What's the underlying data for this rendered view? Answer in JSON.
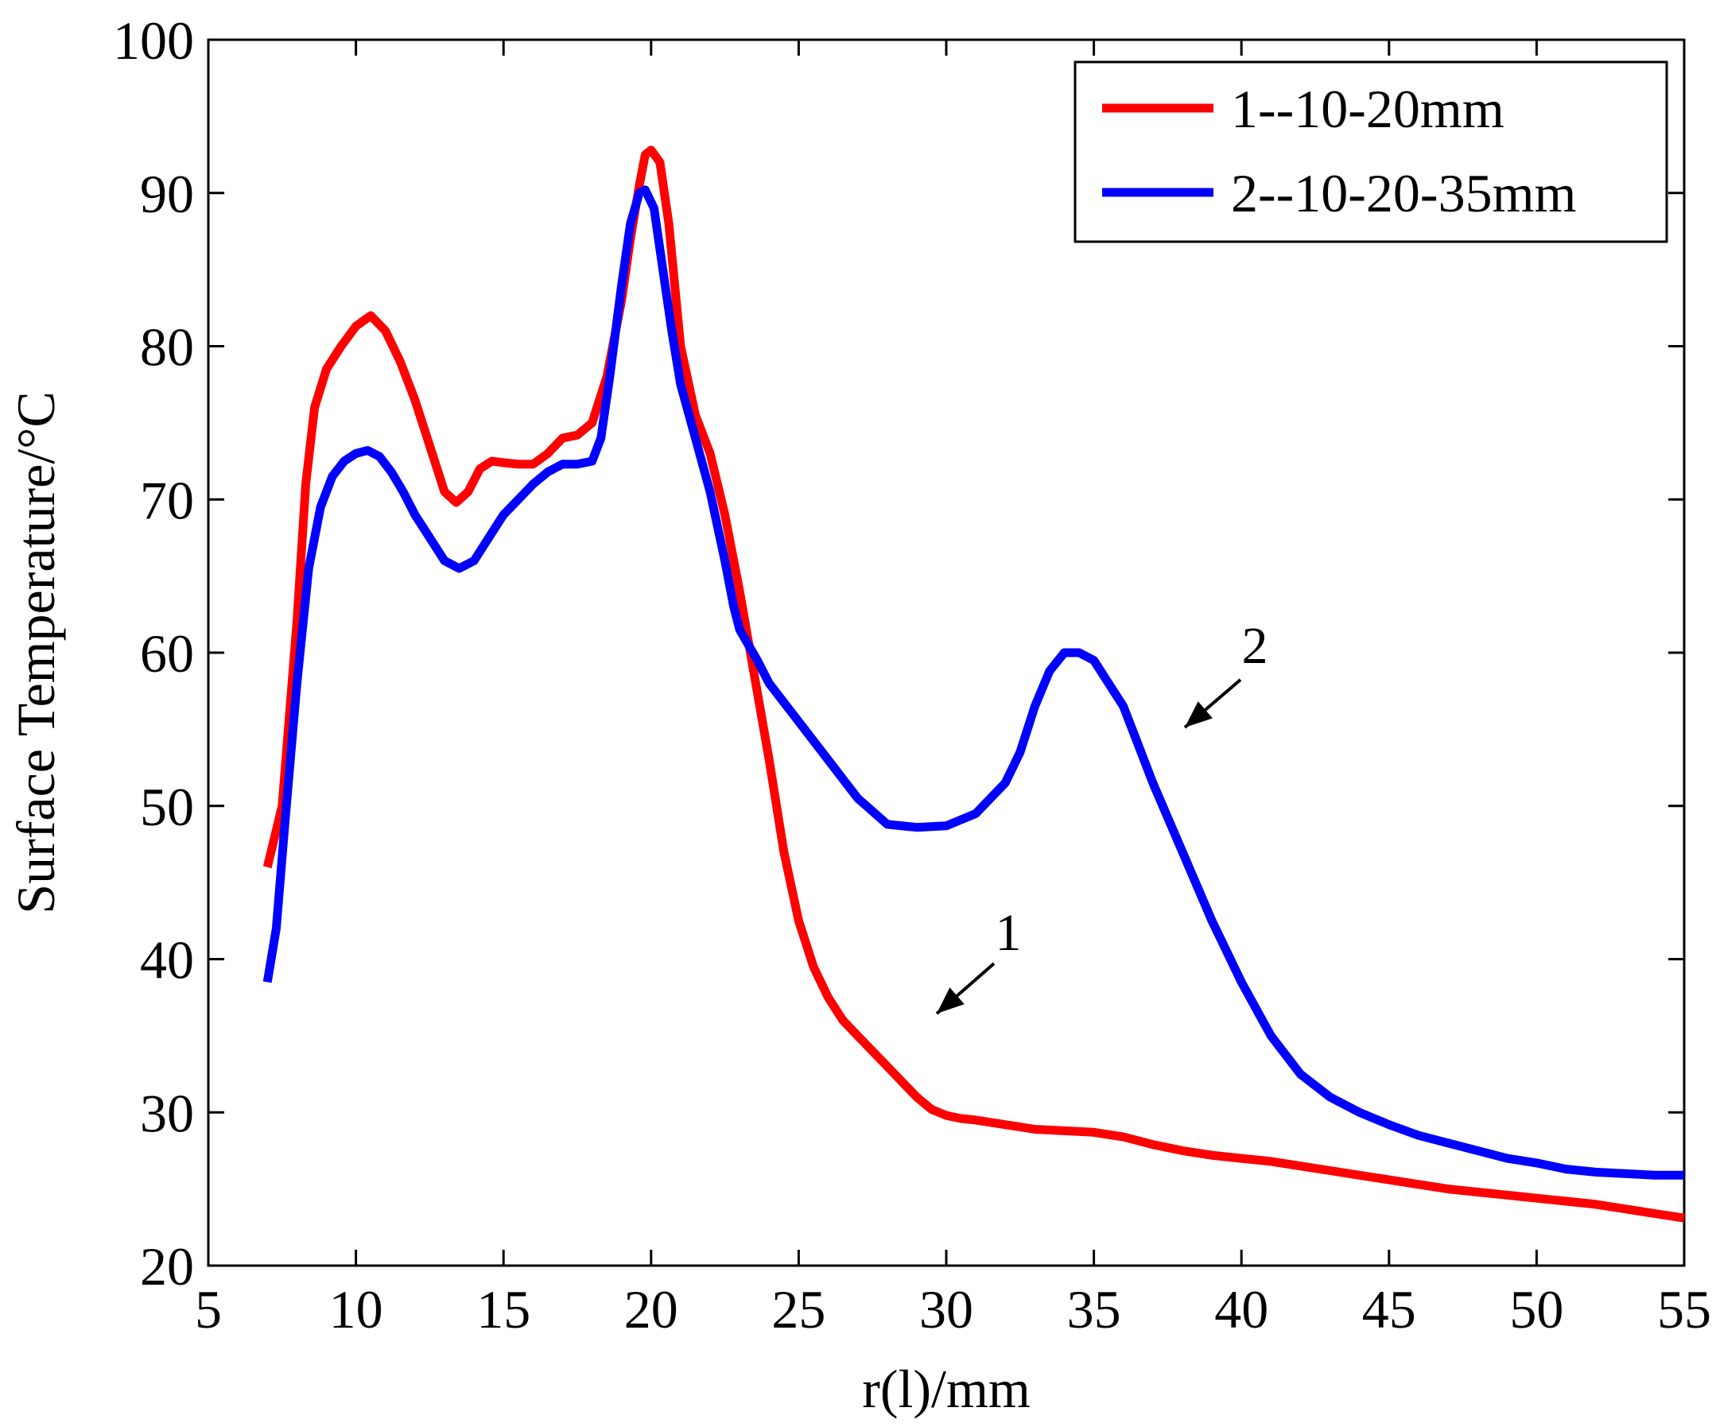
{
  "chart_data": {
    "type": "line",
    "title": "",
    "xlabel": "r(l)/mm",
    "ylabel": "Surface Temperature/°C",
    "xlim": [
      5,
      55
    ],
    "ylim": [
      20,
      100
    ],
    "xticks": [
      5,
      10,
      15,
      20,
      25,
      30,
      35,
      40,
      45,
      50,
      55
    ],
    "yticks": [
      20,
      30,
      40,
      50,
      60,
      70,
      80,
      90,
      100
    ],
    "grid": false,
    "legend_position": "top-right",
    "series": [
      {
        "name": "1--10-20mm",
        "color": "#ff0000",
        "x": [
          7.0,
          7.5,
          8.0,
          8.3,
          8.6,
          9.0,
          9.5,
          10.0,
          10.5,
          11.0,
          11.5,
          12.0,
          12.5,
          13.0,
          13.4,
          13.8,
          14.2,
          14.6,
          15.0,
          15.5,
          16.0,
          16.5,
          17.0,
          17.5,
          18.0,
          18.5,
          19.0,
          19.3,
          19.6,
          19.8,
          20.0,
          20.3,
          20.6,
          21.0,
          21.5,
          22.0,
          22.5,
          23.0,
          23.5,
          24.0,
          24.5,
          25.0,
          25.5,
          26.0,
          26.5,
          27.0,
          27.5,
          28.0,
          28.5,
          29.0,
          29.5,
          30.0,
          30.5,
          31.0,
          32.0,
          33.0,
          34.0,
          35.0,
          36.0,
          37.0,
          38.0,
          39.0,
          40.0,
          41.0,
          42.0,
          43.0,
          44.0,
          45.0,
          46.0,
          47.0,
          48.0,
          49.0,
          50.0,
          51.0,
          52.0,
          53.0,
          54.0,
          55.0
        ],
        "values": [
          46.0,
          50.0,
          62.0,
          71.0,
          76.0,
          78.5,
          80.0,
          81.3,
          82.0,
          81.0,
          79.0,
          76.5,
          73.5,
          70.5,
          69.8,
          70.5,
          72.0,
          72.5,
          72.4,
          72.3,
          72.3,
          73.0,
          74.0,
          74.2,
          75.0,
          78.0,
          83.0,
          87.0,
          90.5,
          92.5,
          92.8,
          92.0,
          88.0,
          80.0,
          75.5,
          73.0,
          69.0,
          64.0,
          58.5,
          53.0,
          47.0,
          42.5,
          39.5,
          37.5,
          36.0,
          35.0,
          34.0,
          33.0,
          32.0,
          31.0,
          30.2,
          29.8,
          29.6,
          29.5,
          29.2,
          28.9,
          28.8,
          28.7,
          28.4,
          27.9,
          27.5,
          27.2,
          27.0,
          26.8,
          26.5,
          26.2,
          25.9,
          25.6,
          25.3,
          25.0,
          24.8,
          24.6,
          24.4,
          24.2,
          24.0,
          23.7,
          23.4,
          23.1
        ]
      },
      {
        "name": "2--10-20-35mm",
        "color": "#0000ff",
        "x": [
          7.0,
          7.3,
          7.6,
          8.0,
          8.4,
          8.8,
          9.2,
          9.6,
          10.0,
          10.4,
          10.8,
          11.2,
          11.6,
          12.0,
          12.5,
          13.0,
          13.5,
          14.0,
          14.5,
          15.0,
          15.5,
          16.0,
          16.5,
          17.0,
          17.5,
          18.0,
          18.3,
          18.6,
          19.0,
          19.3,
          19.6,
          19.8,
          20.1,
          20.4,
          20.7,
          21.0,
          21.5,
          22.0,
          22.5,
          22.8,
          23.0,
          23.3,
          23.6,
          24.0,
          25.0,
          26.0,
          27.0,
          28.0,
          29.0,
          30.0,
          31.0,
          32.0,
          32.5,
          33.0,
          33.5,
          34.0,
          34.5,
          35.0,
          35.5,
          36.0,
          36.5,
          37.0,
          38.0,
          39.0,
          40.0,
          41.0,
          42.0,
          43.0,
          44.0,
          45.0,
          46.0,
          47.0,
          48.0,
          49.0,
          50.0,
          51.0,
          52.0,
          53.0,
          54.0,
          55.0
        ],
        "values": [
          38.5,
          42.0,
          49.0,
          58.0,
          65.5,
          69.5,
          71.5,
          72.5,
          73.0,
          73.2,
          72.8,
          71.8,
          70.5,
          69.0,
          67.5,
          66.0,
          65.5,
          66.0,
          67.5,
          69.0,
          70.0,
          71.0,
          71.8,
          72.3,
          72.3,
          72.5,
          74.0,
          78.0,
          84.0,
          88.0,
          90.0,
          90.2,
          89.0,
          85.0,
          81.0,
          77.5,
          74.0,
          70.5,
          66.0,
          63.0,
          61.5,
          60.5,
          59.5,
          58.0,
          55.5,
          53.0,
          50.5,
          48.8,
          48.6,
          48.7,
          49.5,
          51.5,
          53.5,
          56.5,
          58.8,
          60.0,
          60.0,
          59.5,
          58.0,
          56.5,
          54.0,
          51.5,
          47.0,
          42.5,
          38.5,
          35.0,
          32.5,
          31.0,
          30.0,
          29.2,
          28.5,
          28.0,
          27.5,
          27.0,
          26.7,
          26.3,
          26.1,
          26.0,
          25.9,
          25.9
        ]
      }
    ],
    "annotations": [
      {
        "text": "1",
        "series": "1--10-20mm"
      },
      {
        "text": "2",
        "series": "2--10-20-35mm"
      }
    ]
  }
}
